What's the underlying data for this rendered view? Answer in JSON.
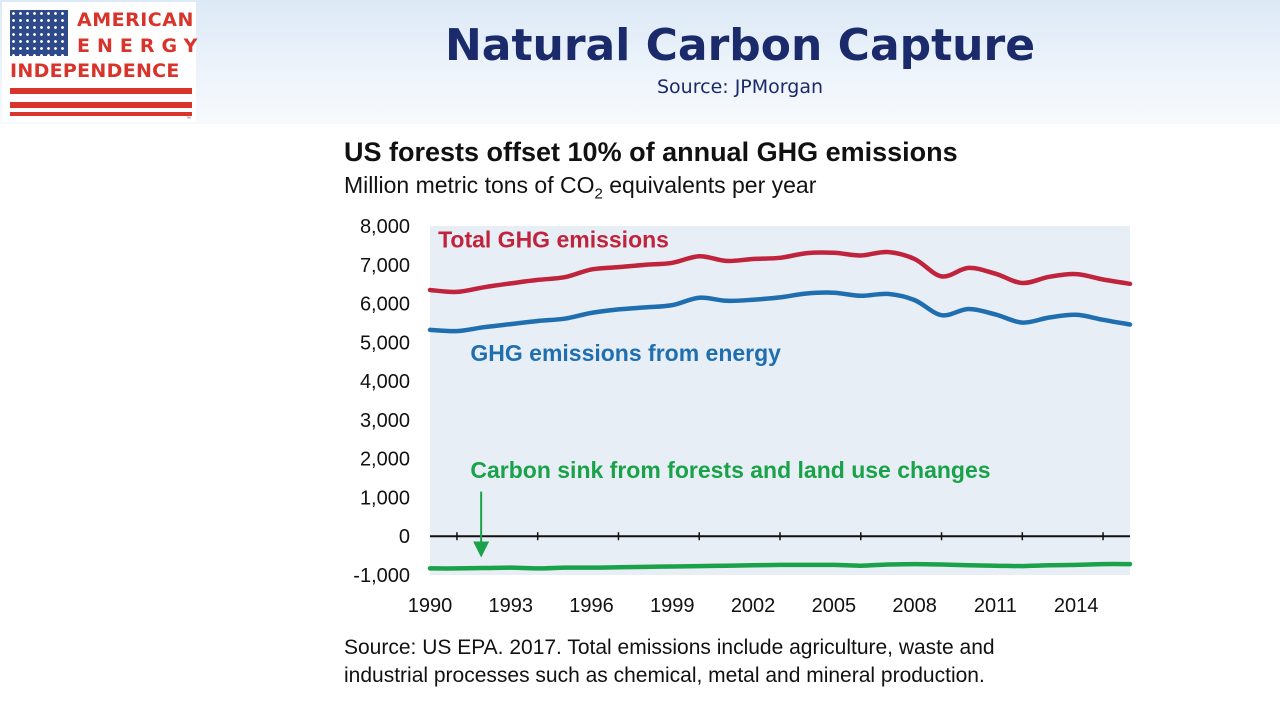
{
  "logo": {
    "line1": "AMERICAN",
    "line2": "ENERGY",
    "line3": "INDEPENDENCE",
    "trademark": "™"
  },
  "header": {
    "title": "Natural Carbon Capture",
    "subtitle": "Source: JPMorgan"
  },
  "colors": {
    "header_title": "#1a2a6b",
    "plot_background": "#e8eef5",
    "logo_red": "#d9342b",
    "logo_blue": "#2f4a8a"
  },
  "chart_data": {
    "type": "line",
    "title": "US forests offset 10% of annual GHG emissions",
    "subtitle_prefix": "Million metric tons of CO",
    "subtitle_sub": "2",
    "subtitle_suffix": " equivalents per year",
    "ylim": [
      -1000,
      8000
    ],
    "yticks": [
      -1000,
      0,
      1000,
      2000,
      3000,
      4000,
      5000,
      6000,
      7000,
      8000
    ],
    "ytick_labels": [
      "-1,000",
      "0",
      "1,000",
      "2,000",
      "3,000",
      "4,000",
      "5,000",
      "6,000",
      "7,000",
      "8,000"
    ],
    "xlim": [
      1990,
      2016
    ],
    "xticks": [
      1990,
      1993,
      1996,
      1999,
      2002,
      2005,
      2008,
      2011,
      2014
    ],
    "xtick_labels": [
      "1990",
      "1993",
      "1996",
      "1999",
      "2002",
      "2005",
      "2008",
      "2011",
      "2014"
    ],
    "grid": false,
    "x": [
      1990,
      1991,
      1992,
      1993,
      1994,
      1995,
      1996,
      1997,
      1998,
      1999,
      2000,
      2001,
      2002,
      2003,
      2004,
      2005,
      2006,
      2007,
      2008,
      2009,
      2010,
      2011,
      2012,
      2013,
      2014,
      2015,
      2016
    ],
    "series": [
      {
        "name": "Total GHG emissions",
        "color": "#c0243d",
        "label_year": 1990.3,
        "label_value": 7450,
        "values": [
          6350,
          6300,
          6420,
          6520,
          6610,
          6680,
          6880,
          6940,
          7000,
          7050,
          7220,
          7100,
          7150,
          7180,
          7300,
          7310,
          7240,
          7330,
          7150,
          6700,
          6920,
          6770,
          6530,
          6690,
          6760,
          6620,
          6510
        ]
      },
      {
        "name": "GHG emissions from energy",
        "color": "#1f6fb0",
        "label_year": 1991.5,
        "label_value": 4520,
        "values": [
          5320,
          5290,
          5390,
          5470,
          5550,
          5610,
          5760,
          5850,
          5900,
          5960,
          6150,
          6070,
          6100,
          6160,
          6260,
          6280,
          6200,
          6250,
          6090,
          5700,
          5860,
          5720,
          5510,
          5640,
          5710,
          5580,
          5460
        ]
      },
      {
        "name": "Carbon sink from forests and land use changes",
        "color": "#1aa24a",
        "label_year": 1991.5,
        "label_value": 1500,
        "values": [
          -830,
          -830,
          -820,
          -810,
          -830,
          -810,
          -810,
          -800,
          -790,
          -780,
          -770,
          -760,
          -750,
          -740,
          -740,
          -740,
          -760,
          -730,
          -720,
          -730,
          -750,
          -760,
          -770,
          -750,
          -740,
          -720,
          -720
        ]
      }
    ],
    "annotation": {
      "type": "arrow",
      "x": 1991.9,
      "y_from": 1150,
      "y_to": -550,
      "color": "#1aa24a"
    }
  },
  "source_note": {
    "line1": "Source: US EPA. 2017.  Total emissions include agriculture, waste and",
    "line2": "industrial processes such as chemical, metal and mineral production."
  }
}
